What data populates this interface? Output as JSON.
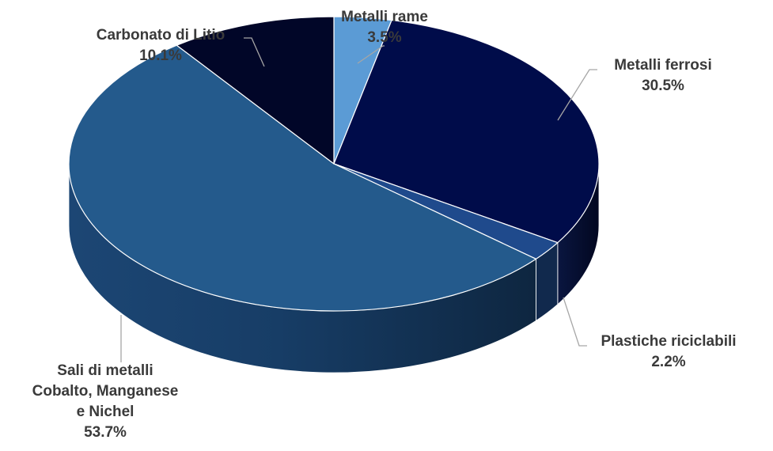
{
  "chart_data": {
    "type": "pie",
    "title": "",
    "slices": [
      {
        "label": [
          "Metalli rame"
        ],
        "value": "3.5%",
        "pct": 3.5,
        "color": "#5b9bd5"
      },
      {
        "label": [
          "Metalli ferrosi"
        ],
        "value": "30.5%",
        "pct": 30.5,
        "color": "#000c4a"
      },
      {
        "label": [
          "Plastiche riciclabili"
        ],
        "value": "2.2%",
        "pct": 2.2,
        "color": "#1f4a8c"
      },
      {
        "label": [
          "Sali di metalli",
          "Cobalto, Manganese",
          "e Nichel"
        ],
        "value": "53.7%",
        "pct": 53.7,
        "color": "#245a8c"
      },
      {
        "label": [
          "Carbonato di Litio"
        ],
        "value": "10.1%",
        "pct": 10.1,
        "color": "#010628"
      }
    ]
  }
}
